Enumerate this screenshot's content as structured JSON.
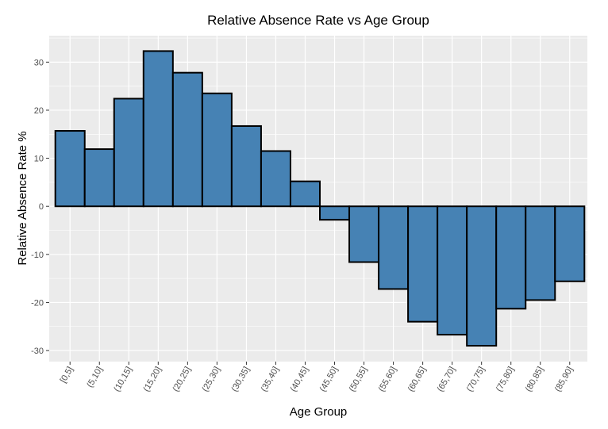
{
  "chart_data": {
    "type": "bar",
    "title": "Relative Absence Rate vs Age Group",
    "xlabel": "Age Group",
    "ylabel": "Relative Absence Rate %",
    "categories": [
      "[0,5]",
      "(5,10]",
      "(10,15]",
      "(15,20]",
      "(20,25]",
      "(25,30]",
      "(30,35]",
      "(35,40]",
      "(40,45]",
      "(45,50]",
      "(50,55]",
      "(55,60]",
      "(60,65]",
      "(65,70]",
      "(70,75]",
      "(75,80]",
      "(80,85]",
      "(85,90]"
    ],
    "values": [
      15.7,
      11.9,
      22.4,
      32.3,
      27.8,
      23.5,
      16.7,
      11.5,
      5.2,
      -2.8,
      -11.6,
      -17.2,
      -24.0,
      -26.7,
      -29.0,
      -21.3,
      -19.5,
      -15.6
    ],
    "ylim": [
      -32.3,
      35.5
    ],
    "yticks": [
      -30,
      -20,
      -10,
      0,
      10,
      20,
      30
    ],
    "bar_fill": "#4682b4",
    "bar_outline": "#000000",
    "panel_background": "#ebebeb",
    "grid_color": "#ffffff",
    "grid": true,
    "legend": "none"
  }
}
